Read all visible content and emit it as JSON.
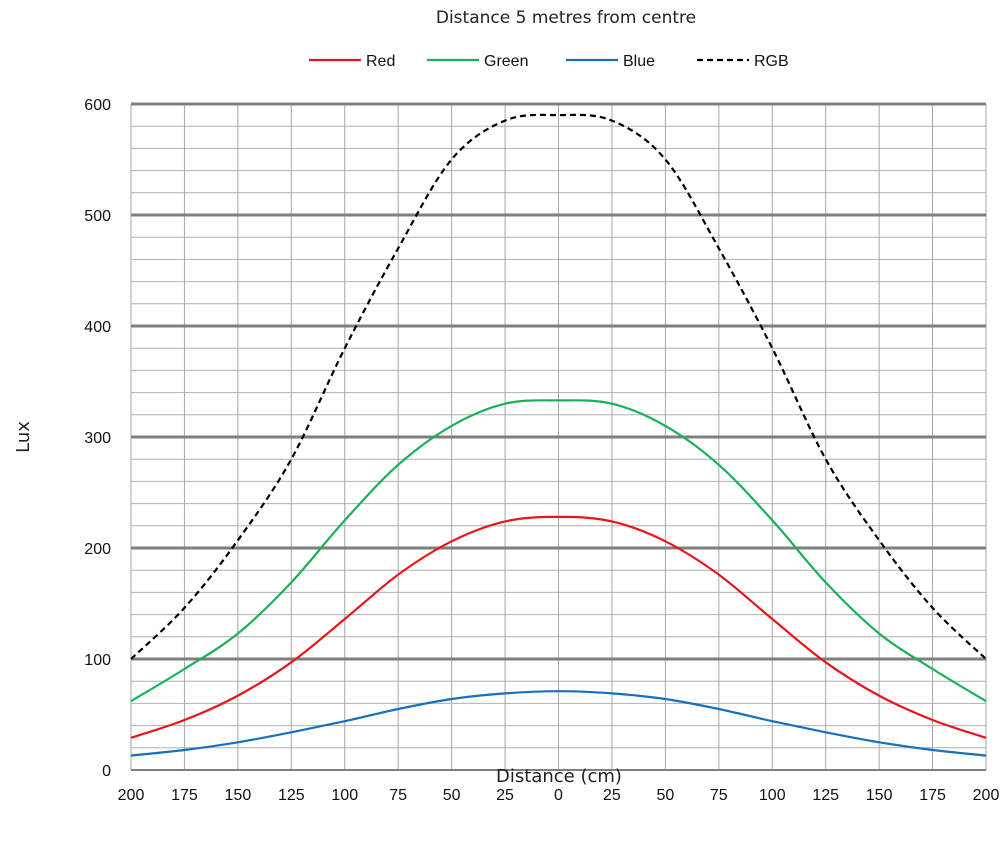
{
  "chart_data": {
    "type": "line",
    "title": "Distance 5 metres from centre",
    "xlabel": "Distance (cm)",
    "ylabel": "Lux",
    "x_tick_labels": [
      "200",
      "175",
      "150",
      "125",
      "100",
      "75",
      "50",
      "25",
      "0",
      "25",
      "50",
      "75",
      "100",
      "125",
      "150",
      "175",
      "200"
    ],
    "y_ticks": [
      0,
      100,
      200,
      300,
      400,
      500,
      600
    ],
    "ylim": [
      0,
      600
    ],
    "grid": true,
    "legend_position": "top",
    "x": [
      -200,
      -175,
      -150,
      -125,
      -100,
      -75,
      -50,
      -25,
      0,
      25,
      50,
      75,
      100,
      125,
      150,
      175,
      200
    ],
    "series": [
      {
        "name": "Red",
        "color": "#e8161b",
        "dash": "solid",
        "values": [
          29,
          45,
          67,
          97,
          136,
          176,
          206,
          224,
          228,
          224,
          206,
          176,
          136,
          97,
          67,
          45,
          29
        ]
      },
      {
        "name": "Green",
        "color": "#1ab05a",
        "dash": "solid",
        "values": [
          62,
          91,
          123,
          169,
          225,
          275,
          310,
          330,
          333,
          330,
          310,
          275,
          225,
          169,
          123,
          91,
          62
        ]
      },
      {
        "name": "Blue",
        "color": "#1670be",
        "dash": "solid",
        "values": [
          13,
          18,
          25,
          34,
          44,
          55,
          64,
          69,
          71,
          69,
          64,
          55,
          44,
          34,
          25,
          18,
          13
        ]
      },
      {
        "name": "RGB",
        "color": "#000000",
        "dash": "dashed",
        "values": [
          100,
          146,
          207,
          280,
          380,
          470,
          550,
          585,
          590,
          585,
          550,
          470,
          380,
          280,
          207,
          146,
          100
        ]
      }
    ]
  }
}
